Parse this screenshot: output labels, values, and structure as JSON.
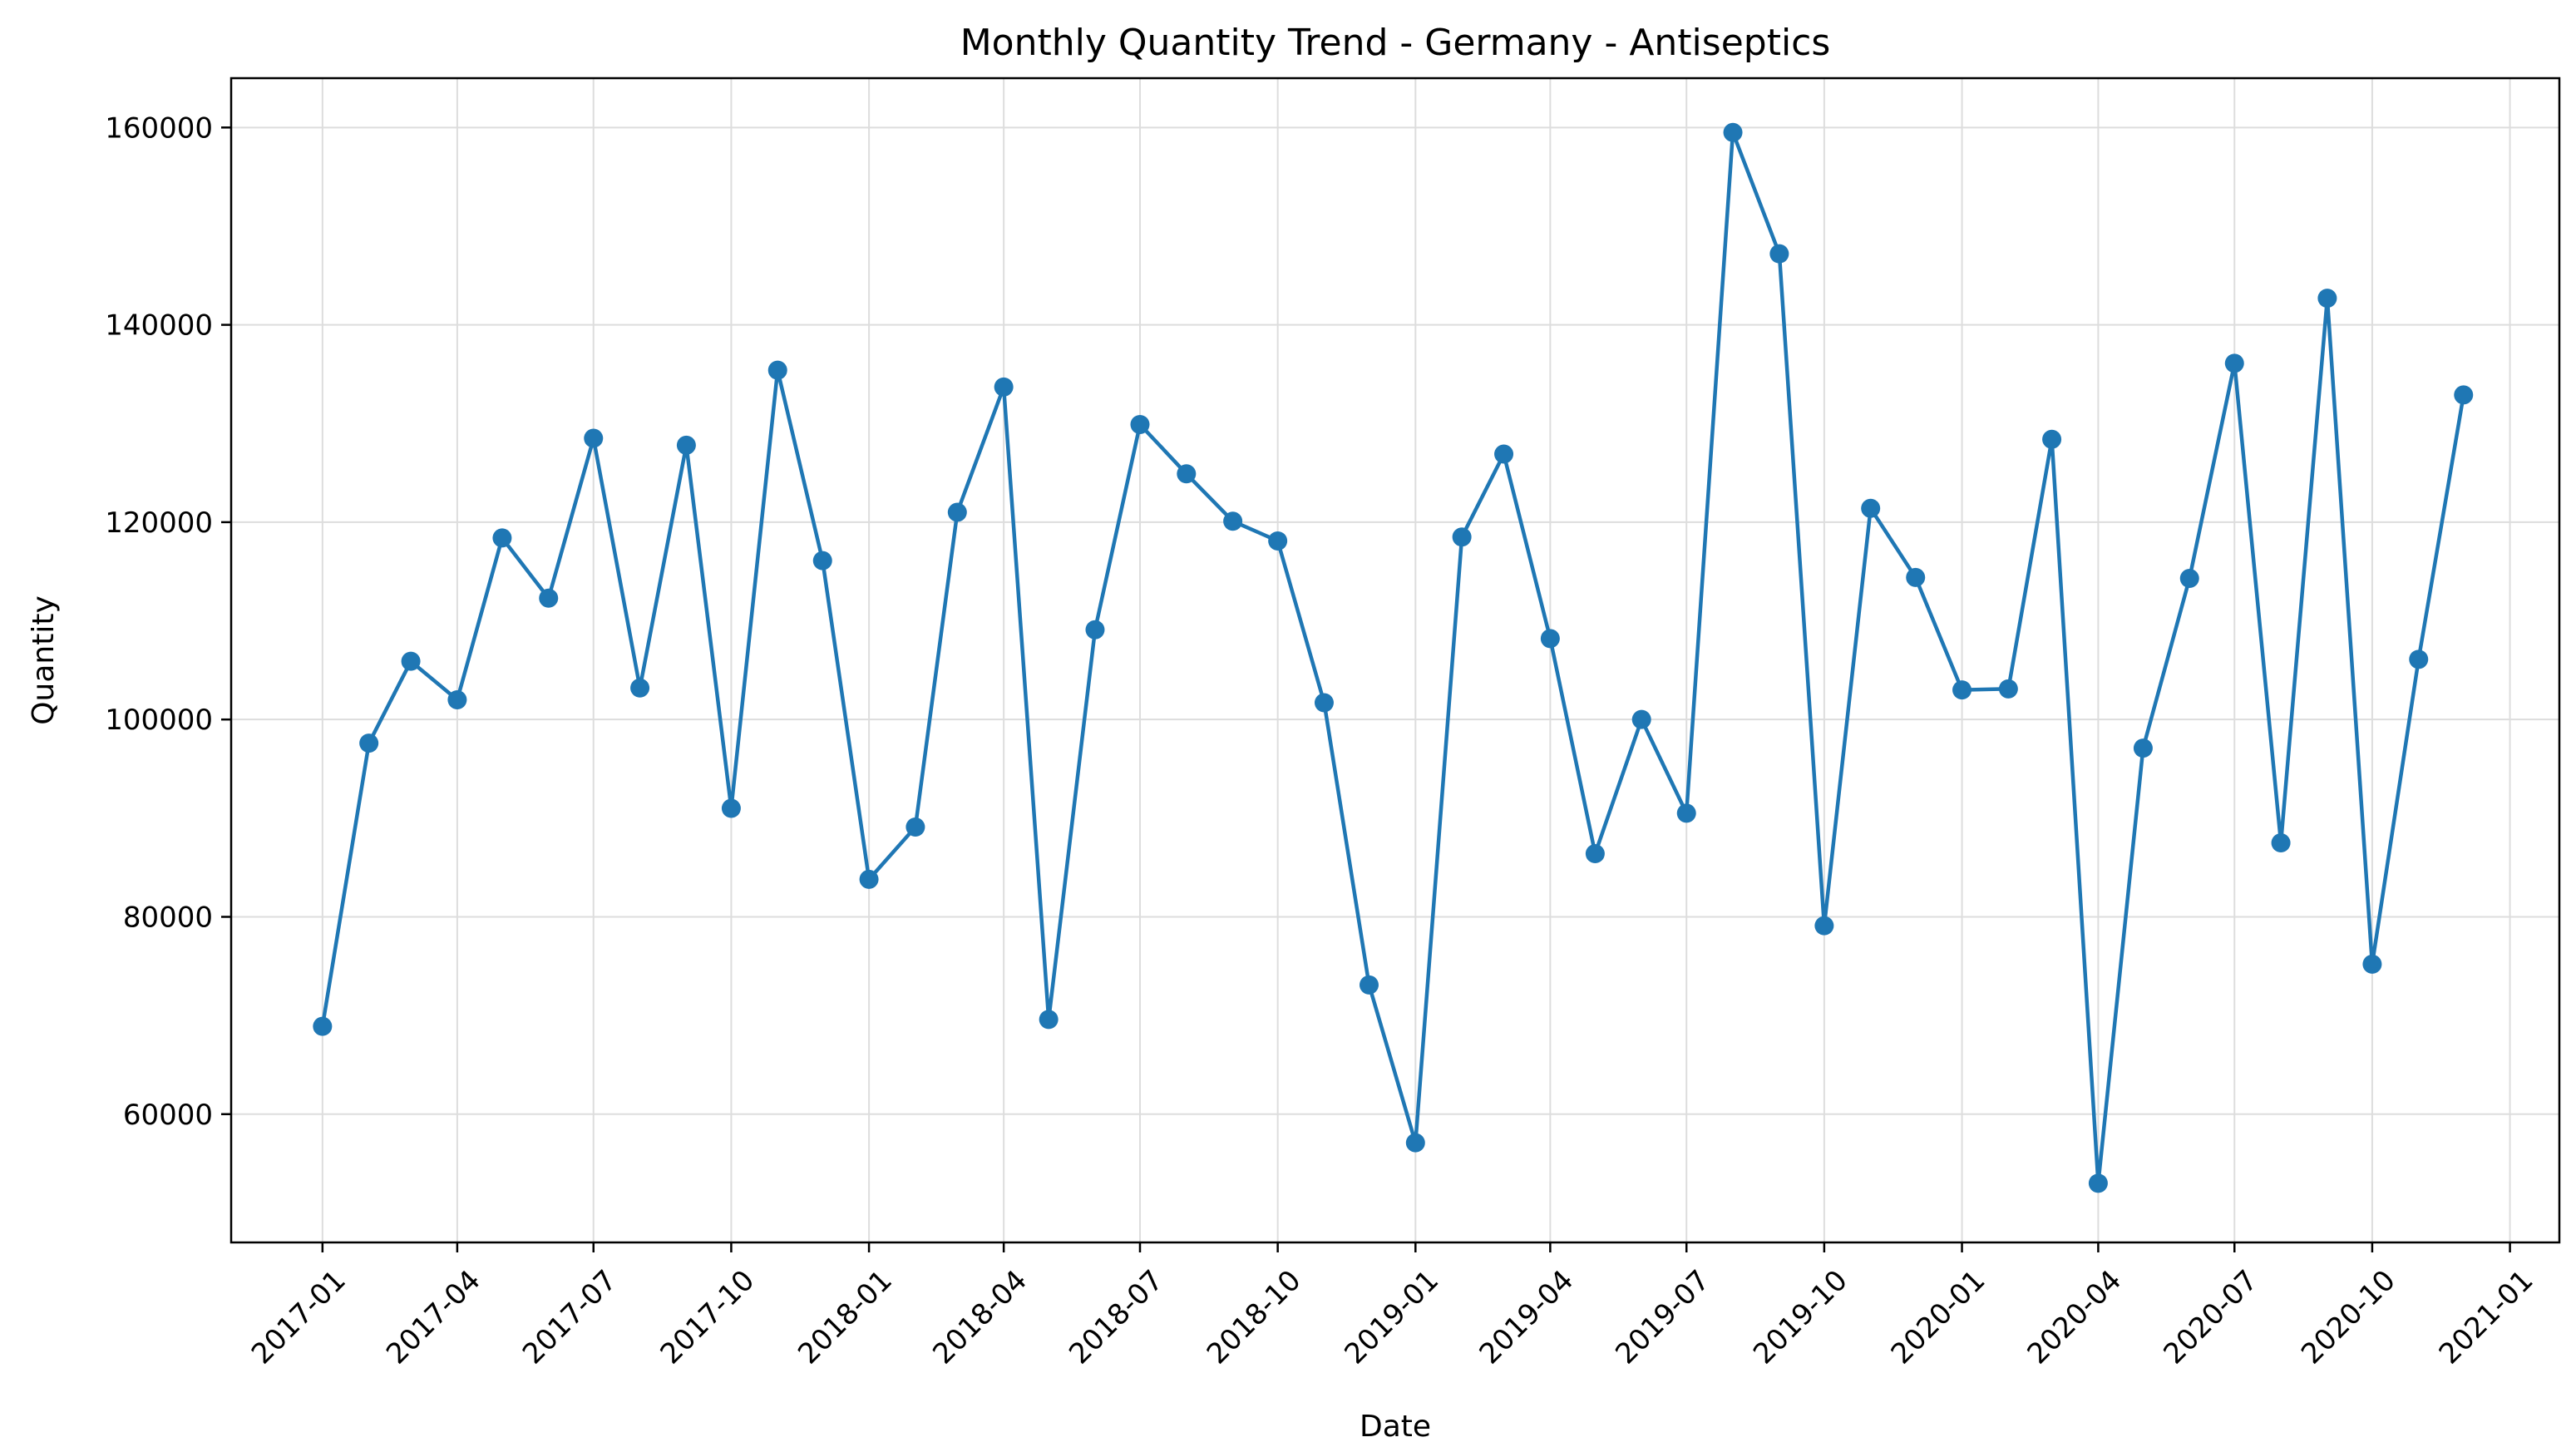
{
  "chart_data": {
    "type": "line",
    "title": "Monthly Quantity Trend - Germany - Antiseptics",
    "xlabel": "Date",
    "ylabel": "Quantity",
    "x_tick_labels": [
      "2017-01",
      "2017-04",
      "2017-07",
      "2017-10",
      "2018-01",
      "2018-04",
      "2018-07",
      "2018-10",
      "2019-01",
      "2019-04",
      "2019-07",
      "2019-10",
      "2020-01",
      "2020-04",
      "2020-07",
      "2020-10",
      "2021-01"
    ],
    "y_tick_labels": [
      "60000",
      "80000",
      "100000",
      "120000",
      "140000",
      "160000"
    ],
    "y_ticks": [
      60000,
      80000,
      100000,
      120000,
      140000,
      160000
    ],
    "ylim": [
      47000,
      165000
    ],
    "xlim": [
      "2016-11-01",
      "2021-02-03"
    ],
    "grid": true,
    "color": "#1f77b4",
    "marker": "circle",
    "series": [
      {
        "x": [
          "2017-01",
          "2017-02",
          "2017-03",
          "2017-04",
          "2017-05",
          "2017-06",
          "2017-07",
          "2017-08",
          "2017-09",
          "2017-10",
          "2017-11",
          "2017-12",
          "2018-01",
          "2018-02",
          "2018-03",
          "2018-04",
          "2018-05",
          "2018-06",
          "2018-07",
          "2018-08",
          "2018-09",
          "2018-10",
          "2018-11",
          "2018-12",
          "2019-01",
          "2019-02",
          "2019-03",
          "2019-04",
          "2019-05",
          "2019-06",
          "2019-07",
          "2019-08",
          "2019-09",
          "2019-10",
          "2019-11",
          "2019-12",
          "2020-01",
          "2020-02",
          "2020-03",
          "2020-04",
          "2020-05",
          "2020-06",
          "2020-07",
          "2020-08",
          "2020-09",
          "2020-10",
          "2020-11",
          "2020-12"
        ],
        "values": [
          68900,
          97600,
          105900,
          102000,
          118400,
          112300,
          128500,
          103200,
          127800,
          91000,
          135400,
          116100,
          83800,
          89100,
          121000,
          133700,
          69600,
          109100,
          129900,
          124900,
          120100,
          118100,
          101700,
          73100,
          57100,
          118500,
          126900,
          108200,
          86400,
          100000,
          90500,
          159500,
          147200,
          79100,
          121400,
          114400,
          103000,
          103100,
          128400,
          53000,
          97100,
          114300,
          136100,
          87500,
          142700,
          75200,
          106100,
          132900
        ]
      }
    ]
  }
}
